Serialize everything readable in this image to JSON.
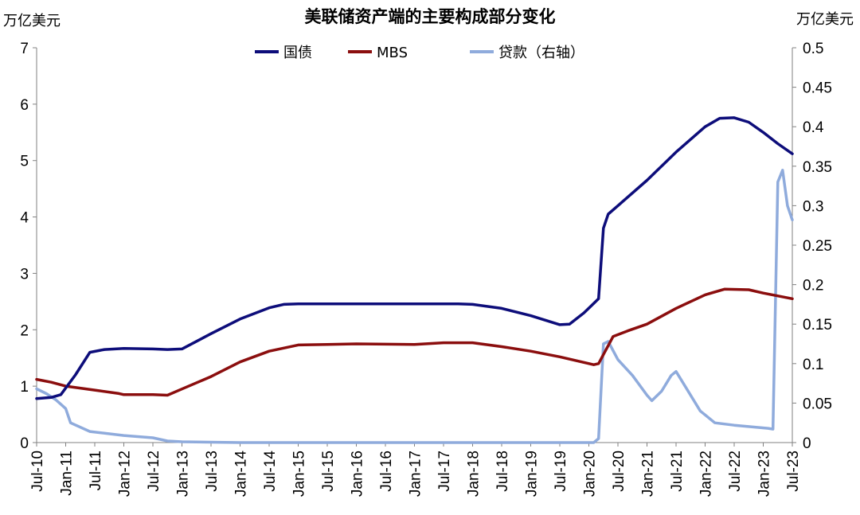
{
  "chart_data": {
    "type": "line",
    "title": "美联储资产端的主要构成部分变化",
    "ylabel_left": "万亿美元",
    "ylabel_right": "万亿美元",
    "ylim_left": [
      0,
      7
    ],
    "ylim_right": [
      0,
      0.5
    ],
    "yticks_left": [
      "0",
      "1",
      "2",
      "3",
      "4",
      "5",
      "6",
      "7"
    ],
    "yticks_right": [
      "0",
      "0.05",
      "0.1",
      "0.15",
      "0.2",
      "0.25",
      "0.3",
      "0.35",
      "0.4",
      "0.45",
      "0.5"
    ],
    "x_range": [
      "2010-07",
      "2023-07"
    ],
    "xticks": [
      "Jul-10",
      "Jan-11",
      "Jul-11",
      "Jan-12",
      "Jul-12",
      "Jan-13",
      "Jul-13",
      "Jan-14",
      "Jul-14",
      "Jan-15",
      "Jul-15",
      "Jan-16",
      "Jul-16",
      "Jan-17",
      "Jul-17",
      "Jan-18",
      "Jul-18",
      "Jan-19",
      "Jul-19",
      "Jan-20",
      "Jul-20",
      "Jan-21",
      "Jul-21",
      "Jan-22",
      "Jul-22",
      "Jan-23",
      "Jul-23"
    ],
    "legend_position": "top-center",
    "grid": false,
    "colors": {
      "国债": "#0d0d7a",
      "MBS": "#8b0e0e",
      "贷款（右轴）": "#8fabdc"
    },
    "series": [
      {
        "name": "国债",
        "axis": "left",
        "points": [
          [
            "2010-07",
            0.78
          ],
          [
            "2010-10",
            0.8
          ],
          [
            "2010-12",
            0.85
          ],
          [
            "2011-03",
            1.2
          ],
          [
            "2011-06",
            1.6
          ],
          [
            "2011-09",
            1.65
          ],
          [
            "2012-01",
            1.67
          ],
          [
            "2012-07",
            1.66
          ],
          [
            "2012-10",
            1.65
          ],
          [
            "2013-01",
            1.66
          ],
          [
            "2013-07",
            1.93
          ],
          [
            "2014-01",
            2.19
          ],
          [
            "2014-07",
            2.39
          ],
          [
            "2014-10",
            2.45
          ],
          [
            "2015-01",
            2.46
          ],
          [
            "2016-01",
            2.46
          ],
          [
            "2017-01",
            2.46
          ],
          [
            "2017-10",
            2.46
          ],
          [
            "2018-01",
            2.45
          ],
          [
            "2018-07",
            2.38
          ],
          [
            "2019-01",
            2.25
          ],
          [
            "2019-07",
            2.09
          ],
          [
            "2019-09",
            2.1
          ],
          [
            "2019-12",
            2.3
          ],
          [
            "2020-03",
            2.55
          ],
          [
            "2020-04",
            3.8
          ],
          [
            "2020-05",
            4.05
          ],
          [
            "2020-07",
            4.2
          ],
          [
            "2021-01",
            4.65
          ],
          [
            "2021-07",
            5.15
          ],
          [
            "2022-01",
            5.6
          ],
          [
            "2022-04",
            5.75
          ],
          [
            "2022-07",
            5.76
          ],
          [
            "2022-10",
            5.68
          ],
          [
            "2023-01",
            5.5
          ],
          [
            "2023-04",
            5.3
          ],
          [
            "2023-07",
            5.12
          ]
        ]
      },
      {
        "name": "MBS",
        "axis": "left",
        "points": [
          [
            "2010-07",
            1.12
          ],
          [
            "2010-10",
            1.07
          ],
          [
            "2011-01",
            1.0
          ],
          [
            "2011-07",
            0.93
          ],
          [
            "2011-12",
            0.87
          ],
          [
            "2012-01",
            0.85
          ],
          [
            "2012-07",
            0.85
          ],
          [
            "2012-10",
            0.84
          ],
          [
            "2013-01",
            0.95
          ],
          [
            "2013-07",
            1.17
          ],
          [
            "2014-01",
            1.43
          ],
          [
            "2014-07",
            1.62
          ],
          [
            "2015-01",
            1.73
          ],
          [
            "2015-07",
            1.74
          ],
          [
            "2016-01",
            1.75
          ],
          [
            "2017-01",
            1.74
          ],
          [
            "2017-07",
            1.77
          ],
          [
            "2018-01",
            1.77
          ],
          [
            "2018-07",
            1.7
          ],
          [
            "2019-01",
            1.62
          ],
          [
            "2019-07",
            1.52
          ],
          [
            "2020-02",
            1.38
          ],
          [
            "2020-03",
            1.4
          ],
          [
            "2020-06",
            1.88
          ],
          [
            "2020-09",
            1.98
          ],
          [
            "2021-01",
            2.1
          ],
          [
            "2021-07",
            2.38
          ],
          [
            "2022-01",
            2.62
          ],
          [
            "2022-05",
            2.72
          ],
          [
            "2022-10",
            2.71
          ],
          [
            "2023-01",
            2.65
          ],
          [
            "2023-07",
            2.55
          ]
        ]
      },
      {
        "name": "贷款（右轴）",
        "axis": "right",
        "points": [
          [
            "2010-07",
            0.068
          ],
          [
            "2010-09",
            0.062
          ],
          [
            "2010-11",
            0.054
          ],
          [
            "2011-01",
            0.043
          ],
          [
            "2011-02",
            0.025
          ],
          [
            "2011-06",
            0.014
          ],
          [
            "2012-01",
            0.009
          ],
          [
            "2012-07",
            0.006
          ],
          [
            "2012-10",
            0.002
          ],
          [
            "2013-01",
            0.001
          ],
          [
            "2014-01",
            0.0
          ],
          [
            "2016-01",
            0.0
          ],
          [
            "2018-01",
            0.0
          ],
          [
            "2020-02",
            0.0
          ],
          [
            "2020-03",
            0.005
          ],
          [
            "2020-04",
            0.125
          ],
          [
            "2020-05",
            0.128
          ],
          [
            "2020-07",
            0.105
          ],
          [
            "2020-10",
            0.085
          ],
          [
            "2021-01",
            0.06
          ],
          [
            "2021-02",
            0.053
          ],
          [
            "2021-04",
            0.065
          ],
          [
            "2021-06",
            0.085
          ],
          [
            "2021-07",
            0.09
          ],
          [
            "2021-09",
            0.07
          ],
          [
            "2021-12",
            0.04
          ],
          [
            "2022-03",
            0.025
          ],
          [
            "2022-07",
            0.022
          ],
          [
            "2023-02",
            0.018
          ],
          [
            "2023-03",
            0.017
          ],
          [
            "2023-04",
            0.33
          ],
          [
            "2023-05",
            0.345
          ],
          [
            "2023-06",
            0.3
          ],
          [
            "2023-07",
            0.282
          ]
        ]
      }
    ]
  }
}
